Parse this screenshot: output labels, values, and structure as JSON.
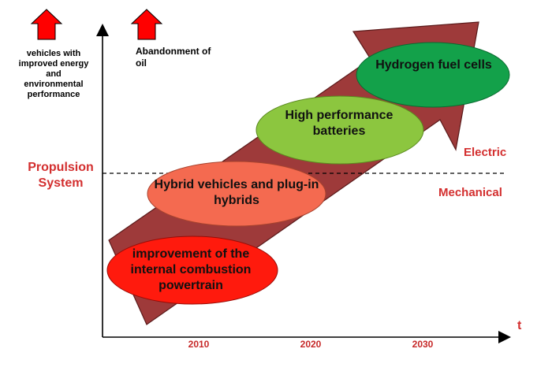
{
  "legend_notes": {
    "vehicles": "vehicles with improved energy and environmental performance",
    "oil": "Abandonment of oil"
  },
  "axis": {
    "y_label": "Propulsion System",
    "x_label": "t",
    "years": [
      "2010",
      "2020",
      "2030"
    ]
  },
  "zones": {
    "upper": "Electric",
    "lower": "Mechanical"
  },
  "stages": {
    "ice": "improvement of the internal combustion powertrain",
    "hybrid": "Hybrid vehicles and plug-in hybrids",
    "battery": "High performance batteries",
    "hydrogen": "Hydrogen fuel cells"
  },
  "colors": {
    "arrow": "#9e3a3a",
    "indicator_arrow": "#ff0000",
    "ice": "#ff1a0d",
    "hybrid": "#f46a50",
    "battery": "#8cc63f",
    "hydrogen": "#13a14a",
    "red_text": "#d32f2f"
  }
}
